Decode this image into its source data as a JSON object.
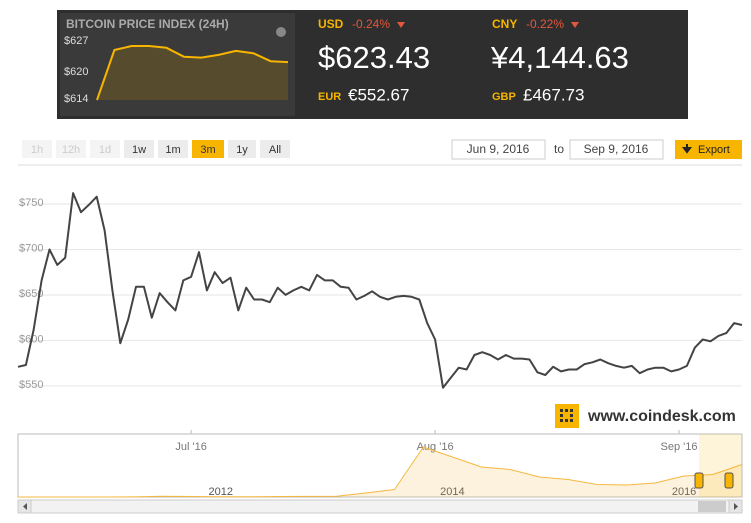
{
  "header": {
    "title": "BITCOIN PRICE INDEX (24H)",
    "usd": {
      "label": "USD",
      "change": "-0.24%",
      "price": "$623.43"
    },
    "cny": {
      "label": "CNY",
      "change": "-0.22%",
      "price": "¥4,144.63"
    },
    "eur": {
      "label": "EUR",
      "price": "€552.67"
    },
    "gbp": {
      "label": "GBP",
      "price": "£467.73"
    }
  },
  "toolbar": {
    "ranges": [
      {
        "label": "1h",
        "enabled": false
      },
      {
        "label": "12h",
        "enabled": false
      },
      {
        "label": "1d",
        "enabled": false
      },
      {
        "label": "1w",
        "enabled": true
      },
      {
        "label": "1m",
        "enabled": true
      },
      {
        "label": "3m",
        "enabled": true,
        "selected": true
      },
      {
        "label": "1y",
        "enabled": true
      },
      {
        "label": "All",
        "enabled": true
      }
    ],
    "from": "Jun 9, 2016",
    "to_label": "to",
    "to": "Sep 9, 2016",
    "export": "Export"
  },
  "watermark": "www.coindesk.com",
  "chart_data": [
    {
      "type": "line",
      "color": "#444444",
      "grid": true,
      "categories": [
        null,
        null,
        null,
        null,
        null,
        null,
        null,
        null,
        null,
        null,
        null,
        null,
        null,
        null,
        null,
        null,
        null,
        null,
        null,
        null,
        null,
        null,
        "Jul '16",
        null,
        null,
        null,
        null,
        null,
        null,
        null,
        null,
        null,
        null,
        null,
        null,
        null,
        null,
        null,
        null,
        null,
        null,
        null,
        null,
        null,
        null,
        null,
        null,
        null,
        null,
        null,
        null,
        null,
        null,
        "Aug '16",
        null,
        null,
        null,
        null,
        null,
        null,
        null,
        null,
        null,
        null,
        null,
        null,
        null,
        null,
        null,
        null,
        null,
        null,
        null,
        null,
        null,
        null,
        null,
        null,
        null,
        null,
        null,
        null,
        null,
        null,
        "Sep '16",
        null,
        null,
        null,
        null,
        null,
        null,
        null,
        null
      ],
      "values": [
        571,
        573,
        612,
        666,
        700,
        683,
        691,
        762,
        741,
        749,
        758,
        721,
        655,
        597,
        623,
        659,
        659,
        625,
        652,
        642,
        633,
        666,
        670,
        697,
        655,
        675,
        663,
        669,
        633,
        658,
        645,
        645,
        642,
        658,
        650,
        655,
        659,
        655,
        672,
        666,
        666,
        659,
        658,
        645,
        649,
        654,
        648,
        645,
        648,
        649,
        648,
        645,
        619,
        601,
        548,
        559,
        570,
        568,
        584,
        587,
        584,
        579,
        584,
        580,
        580,
        579,
        565,
        562,
        571,
        566,
        568,
        568,
        574,
        576,
        579,
        575,
        572,
        570,
        572,
        564,
        568,
        570,
        570,
        566,
        568,
        572,
        592,
        601,
        599,
        605,
        608,
        619,
        617
      ],
      "ylim": [
        540,
        780
      ],
      "yticks": [
        {
          "value": 550,
          "label": "$550"
        },
        {
          "value": 600,
          "label": "$600"
        },
        {
          "value": 650,
          "label": "$650"
        },
        {
          "value": 700,
          "label": "$700"
        },
        {
          "value": 750,
          "label": "$750"
        }
      ]
    },
    {
      "type": "area",
      "color": "#f7b500",
      "categories": [
        null,
        null,
        null,
        null,
        null,
        null,
        null,
        null,
        null,
        null,
        null,
        null
      ],
      "values": [
        614,
        625.2,
        626.1,
        626.1,
        625.7,
        623.7,
        623.5,
        624.1,
        625,
        624.5,
        622.7,
        622.5
      ],
      "ylim": [
        614,
        627
      ],
      "yticks": [
        {
          "value": 614,
          "label": "$614"
        },
        {
          "value": 620,
          "label": "$620"
        },
        {
          "value": 627,
          "label": "$627"
        }
      ]
    },
    {
      "type": "area",
      "color": "#f5b840",
      "categories": [
        null,
        null,
        null,
        null,
        null,
        null,
        null,
        "2012",
        null,
        null,
        null,
        null,
        null,
        null,
        null,
        "2014",
        null,
        null,
        null,
        null,
        null,
        null,
        null,
        "2016",
        null,
        null
      ],
      "values": [
        0,
        0,
        0,
        0,
        1,
        15,
        10,
        5,
        5,
        10,
        12,
        15,
        80,
        150,
        1000,
        800,
        600,
        550,
        400,
        350,
        250,
        240,
        280,
        420,
        450,
        650
      ],
      "ylim": [
        0,
        1200
      ]
    }
  ]
}
